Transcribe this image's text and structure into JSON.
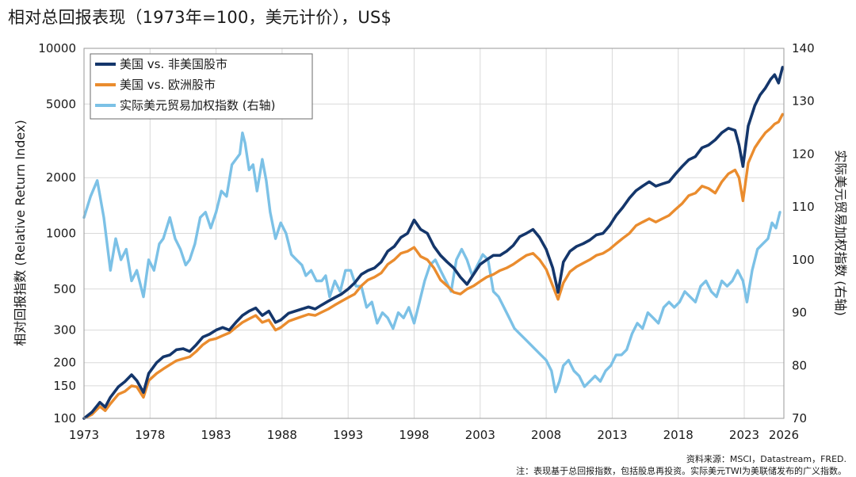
{
  "chart_data": {
    "type": "line",
    "title": "相对总回报表现（1973年=100，美元计价），US$",
    "ylabel": "相对回报指数 (Relative Return Index)",
    "y2label": "实际美元贸易加权指数 (右轴)",
    "xlim": [
      1973,
      2026
    ],
    "ylim": [
      100,
      10000
    ],
    "yscale": "log",
    "y2lim": [
      70,
      140
    ],
    "grid": true,
    "legend_position": "top-left",
    "x_ticks": [
      1973,
      1978,
      1983,
      1988,
      1993,
      1998,
      2003,
      2008,
      2013,
      2018,
      2023,
      2026
    ],
    "y_ticks": [
      100,
      150,
      200,
      300,
      500,
      1000,
      2000,
      5000,
      10000
    ],
    "y2_ticks": [
      70,
      80,
      90,
      100,
      110,
      120,
      130,
      140
    ],
    "series": [
      {
        "name": "美国 vs. 非美国股市",
        "axis": "left",
        "color": "#14366b",
        "x": [
          1973.0,
          1973.6,
          1974.2,
          1974.6,
          1975.0,
          1975.6,
          1976.1,
          1976.6,
          1977.0,
          1977.5,
          1977.9,
          1978.5,
          1979.0,
          1979.5,
          1980.0,
          1980.5,
          1981.0,
          1981.5,
          1982.0,
          1982.5,
          1983.0,
          1983.5,
          1984.0,
          1984.5,
          1985.0,
          1985.5,
          1986.0,
          1986.5,
          1987.0,
          1987.5,
          1987.9,
          1988.5,
          1989.0,
          1989.5,
          1990.0,
          1990.5,
          1991.0,
          1991.5,
          1992.0,
          1992.5,
          1993.0,
          1993.5,
          1994.0,
          1994.5,
          1995.0,
          1995.5,
          1996.0,
          1996.5,
          1997.0,
          1997.5,
          1998.0,
          1998.5,
          1999.0,
          1999.5,
          2000.0,
          2000.5,
          2001.0,
          2001.5,
          2002.0,
          2002.5,
          2003.0,
          2003.5,
          2004.0,
          2004.5,
          2005.0,
          2005.5,
          2006.0,
          2006.5,
          2007.0,
          2007.5,
          2008.0,
          2008.5,
          2008.9,
          2009.3,
          2009.8,
          2010.3,
          2010.8,
          2011.3,
          2011.8,
          2012.3,
          2012.8,
          2013.3,
          2013.8,
          2014.3,
          2014.8,
          2015.3,
          2015.8,
          2016.3,
          2016.8,
          2017.3,
          2017.8,
          2018.3,
          2018.8,
          2019.3,
          2019.8,
          2020.3,
          2020.8,
          2021.3,
          2021.8,
          2022.3,
          2022.6,
          2022.9,
          2023.3,
          2023.8,
          2024.2,
          2024.6,
          2025.0,
          2025.3,
          2025.6,
          2025.9
        ],
        "values": [
          100,
          108,
          122,
          115,
          130,
          148,
          158,
          172,
          160,
          138,
          175,
          200,
          215,
          220,
          235,
          238,
          230,
          250,
          275,
          285,
          300,
          310,
          300,
          330,
          360,
          380,
          395,
          360,
          380,
          330,
          340,
          370,
          380,
          390,
          400,
          390,
          410,
          430,
          450,
          470,
          500,
          540,
          600,
          630,
          650,
          700,
          800,
          850,
          950,
          1000,
          1180,
          1050,
          1000,
          850,
          760,
          700,
          650,
          580,
          530,
          600,
          680,
          720,
          760,
          760,
          800,
          860,
          960,
          1000,
          1050,
          950,
          820,
          650,
          480,
          700,
          800,
          850,
          880,
          920,
          980,
          1000,
          1100,
          1250,
          1380,
          1550,
          1700,
          1800,
          1900,
          1800,
          1850,
          1900,
          2100,
          2300,
          2500,
          2600,
          2900,
          3000,
          3200,
          3500,
          3700,
          3600,
          3000,
          2300,
          3800,
          4900,
          5600,
          6100,
          6800,
          7200,
          6500,
          7900
        ]
      },
      {
        "name": "美国 vs. 欧洲股市",
        "axis": "left",
        "color": "#ea8c2e",
        "x": [
          1973.0,
          1973.6,
          1974.2,
          1974.6,
          1975.0,
          1975.6,
          1976.1,
          1976.6,
          1977.0,
          1977.5,
          1977.9,
          1978.5,
          1979.0,
          1979.5,
          1980.0,
          1980.5,
          1981.0,
          1981.5,
          1982.0,
          1982.5,
          1983.0,
          1983.5,
          1984.0,
          1984.5,
          1985.0,
          1985.5,
          1986.0,
          1986.5,
          1987.0,
          1987.5,
          1987.9,
          1988.5,
          1989.0,
          1989.5,
          1990.0,
          1990.5,
          1991.0,
          1991.5,
          1992.0,
          1992.5,
          1993.0,
          1993.5,
          1994.0,
          1994.5,
          1995.0,
          1995.5,
          1996.0,
          1996.5,
          1997.0,
          1997.5,
          1998.0,
          1998.5,
          1999.0,
          1999.5,
          2000.0,
          2000.5,
          2001.0,
          2001.5,
          2002.0,
          2002.5,
          2003.0,
          2003.5,
          2004.0,
          2004.5,
          2005.0,
          2005.5,
          2006.0,
          2006.5,
          2007.0,
          2007.5,
          2008.0,
          2008.5,
          2008.9,
          2009.3,
          2009.8,
          2010.3,
          2010.8,
          2011.3,
          2011.8,
          2012.3,
          2012.8,
          2013.3,
          2013.8,
          2014.3,
          2014.8,
          2015.3,
          2015.8,
          2016.3,
          2016.8,
          2017.3,
          2017.8,
          2018.3,
          2018.8,
          2019.3,
          2019.8,
          2020.3,
          2020.8,
          2021.3,
          2021.8,
          2022.3,
          2022.6,
          2022.9,
          2023.3,
          2023.8,
          2024.2,
          2024.6,
          2025.0,
          2025.3,
          2025.6,
          2025.9
        ],
        "values": [
          100,
          105,
          116,
          110,
          120,
          135,
          140,
          150,
          148,
          130,
          160,
          175,
          185,
          195,
          205,
          210,
          215,
          230,
          250,
          265,
          270,
          280,
          290,
          310,
          330,
          345,
          360,
          330,
          340,
          300,
          310,
          335,
          345,
          355,
          365,
          360,
          375,
          390,
          410,
          430,
          450,
          470,
          520,
          560,
          580,
          610,
          680,
          720,
          780,
          800,
          840,
          750,
          720,
          650,
          560,
          520,
          480,
          470,
          500,
          520,
          550,
          580,
          600,
          630,
          650,
          680,
          720,
          760,
          780,
          720,
          640,
          520,
          440,
          540,
          620,
          660,
          690,
          720,
          760,
          780,
          820,
          880,
          940,
          1000,
          1100,
          1150,
          1200,
          1150,
          1200,
          1250,
          1350,
          1450,
          1600,
          1650,
          1800,
          1750,
          1650,
          1900,
          2100,
          2200,
          2000,
          1500,
          2400,
          2900,
          3200,
          3500,
          3700,
          3900,
          4000,
          4400
        ]
      },
      {
        "name": "实际美元贸易加权指数 (右轴)",
        "axis": "right",
        "color": "#7cc1e6",
        "x": [
          1973.0,
          1973.5,
          1974.0,
          1974.5,
          1975.0,
          1975.4,
          1975.8,
          1976.2,
          1976.6,
          1977.0,
          1977.5,
          1977.9,
          1978.3,
          1978.7,
          1979.0,
          1979.5,
          1979.9,
          1980.3,
          1980.7,
          1981.0,
          1981.4,
          1981.8,
          1982.2,
          1982.6,
          1983.0,
          1983.4,
          1983.8,
          1984.2,
          1984.5,
          1984.8,
          1985.0,
          1985.2,
          1985.5,
          1985.8,
          1986.1,
          1986.5,
          1986.8,
          1987.1,
          1987.5,
          1987.9,
          1988.3,
          1988.7,
          1989.1,
          1989.5,
          1989.8,
          1990.2,
          1990.6,
          1991.0,
          1991.3,
          1991.6,
          1992.0,
          1992.4,
          1992.8,
          1993.2,
          1993.6,
          1994.0,
          1994.4,
          1994.8,
          1995.2,
          1995.6,
          1996.0,
          1996.4,
          1996.8,
          1997.2,
          1997.6,
          1998.0,
          1998.4,
          1998.8,
          1999.2,
          1999.6,
          2000.0,
          2000.4,
          2000.8,
          2001.2,
          2001.6,
          2002.0,
          2002.4,
          2002.8,
          2003.2,
          2003.6,
          2004.0,
          2004.4,
          2004.8,
          2005.2,
          2005.6,
          2006.0,
          2006.4,
          2006.8,
          2007.2,
          2007.6,
          2008.0,
          2008.4,
          2008.7,
          2009.0,
          2009.3,
          2009.7,
          2010.1,
          2010.5,
          2010.9,
          2011.3,
          2011.7,
          2012.1,
          2012.5,
          2012.9,
          2013.3,
          2013.7,
          2014.1,
          2014.5,
          2014.9,
          2015.3,
          2015.7,
          2016.1,
          2016.5,
          2016.9,
          2017.3,
          2017.7,
          2018.1,
          2018.5,
          2018.9,
          2019.3,
          2019.7,
          2020.1,
          2020.5,
          2020.9,
          2021.3,
          2021.7,
          2022.1,
          2022.5,
          2022.9,
          2023.2,
          2023.6,
          2024.0,
          2024.4,
          2024.8,
          2025.1,
          2025.4,
          2025.7
        ],
        "values": [
          108,
          112,
          115,
          108,
          98,
          104,
          100,
          102,
          96,
          98,
          93,
          100,
          98,
          103,
          104,
          108,
          104,
          102,
          99,
          100,
          103,
          108,
          109,
          106,
          109,
          113,
          112,
          118,
          119,
          120,
          124,
          122,
          117,
          118,
          113,
          119,
          115,
          109,
          104,
          107,
          105,
          101,
          100,
          99,
          97,
          98,
          96,
          96,
          97,
          93,
          96,
          94,
          98,
          98,
          95,
          95,
          91,
          92,
          88,
          90,
          89,
          87,
          90,
          89,
          91,
          88,
          92,
          96,
          99,
          100,
          98,
          96,
          94,
          100,
          102,
          100,
          97,
          99,
          101,
          100,
          94,
          93,
          91,
          89,
          87,
          86,
          85,
          84,
          83,
          82,
          81,
          79,
          75,
          77,
          80,
          81,
          79,
          78,
          76,
          77,
          78,
          77,
          79,
          80,
          82,
          82,
          83,
          86,
          88,
          87,
          90,
          89,
          88,
          91,
          92,
          91,
          92,
          94,
          93,
          92,
          95,
          96,
          94,
          93,
          96,
          95,
          96,
          98,
          96,
          92,
          98,
          102,
          103,
          104,
          107,
          106,
          109
        ]
      }
    ]
  },
  "source_note": "资料来源：MSCI，Datastream，FRED.",
  "footnote": "注：表现基于总回报指数，包括股息再投资。实际美元TWI为美联储发布的广义指数。"
}
